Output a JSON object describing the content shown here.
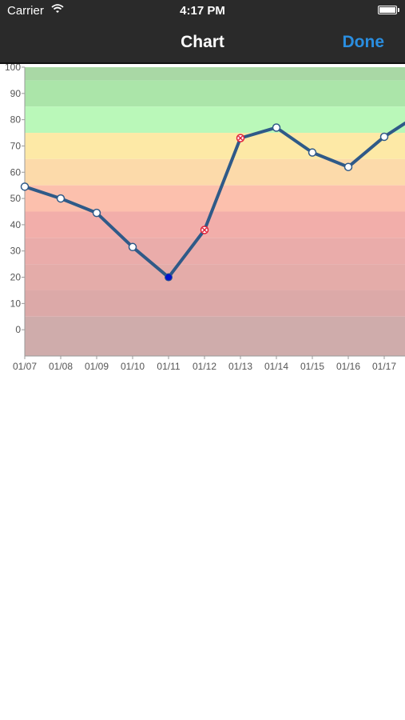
{
  "status_bar": {
    "carrier": "Carrier",
    "time": "4:17 PM"
  },
  "nav": {
    "title": "Chart",
    "done_label": "Done"
  },
  "colors": {
    "line": "#2f5a88",
    "marker_open": "#ffffff",
    "marker_selected": "#0011cc",
    "marker_flagged": "#e0223a",
    "done": "#2a8ee0"
  },
  "chart_data": {
    "type": "line",
    "categories": [
      "01/07",
      "01/08",
      "01/09",
      "01/10",
      "01/11",
      "01/12",
      "01/13",
      "01/14",
      "01/15",
      "01/16",
      "01/17"
    ],
    "values": [
      54.5,
      50,
      44.5,
      31.5,
      20,
      38,
      73,
      77,
      67.5,
      62,
      73.5
    ],
    "marker_styles": [
      "open",
      "open",
      "open",
      "open",
      "selected",
      "flagged",
      "flagged",
      "open",
      "open",
      "open",
      "open"
    ],
    "ylim": [
      -10,
      100
    ],
    "yticks": [
      "100",
      "90",
      "80",
      "70",
      "60",
      "50",
      "40",
      "30",
      "20",
      "10",
      "0"
    ],
    "bands": [
      {
        "from": 95,
        "to": 100,
        "color": "#a9d8a5"
      },
      {
        "from": 85,
        "to": 95,
        "color": "#abe5a9"
      },
      {
        "from": 75,
        "to": 85,
        "color": "#baf8b9"
      },
      {
        "from": 65,
        "to": 75,
        "color": "#fde9a6"
      },
      {
        "from": 55,
        "to": 65,
        "color": "#fcdaaa"
      },
      {
        "from": 45,
        "to": 55,
        "color": "#fcc0ad"
      },
      {
        "from": 35,
        "to": 45,
        "color": "#f2aeaa"
      },
      {
        "from": 25,
        "to": 35,
        "color": "#eaacaa"
      },
      {
        "from": 15,
        "to": 25,
        "color": "#e4aca9"
      },
      {
        "from": 5,
        "to": 15,
        "color": "#dca9a8"
      },
      {
        "from": -10,
        "to": 5,
        "color": "#cfacab"
      }
    ],
    "grid": false,
    "legend": "none"
  }
}
